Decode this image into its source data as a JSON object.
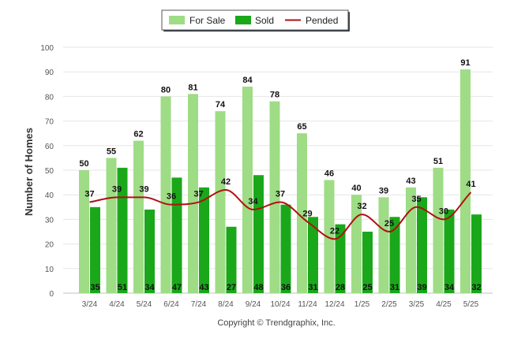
{
  "chart_data": {
    "type": "bar",
    "title": "",
    "xlabel": "",
    "ylabel": "Number of Homes",
    "ylim": [
      0,
      100
    ],
    "yticks": [
      0,
      10,
      20,
      30,
      40,
      50,
      60,
      70,
      80,
      90,
      100
    ],
    "grid": true,
    "legend_position": "top-center",
    "categories": [
      "3/24",
      "4/24",
      "5/24",
      "6/24",
      "7/24",
      "8/24",
      "9/24",
      "10/24",
      "11/24",
      "12/24",
      "1/25",
      "2/25",
      "3/25",
      "4/25",
      "5/25"
    ],
    "series": [
      {
        "name": "For Sale",
        "type": "bar",
        "color": "#9edc85",
        "values": [
          50,
          55,
          62,
          80,
          81,
          74,
          84,
          78,
          65,
          46,
          40,
          39,
          43,
          51,
          91
        ]
      },
      {
        "name": "Sold",
        "type": "bar",
        "color": "#1aa81a",
        "values": [
          35,
          51,
          34,
          47,
          43,
          27,
          48,
          36,
          31,
          28,
          25,
          31,
          39,
          34,
          32
        ]
      },
      {
        "name": "Pended",
        "type": "line",
        "color": "#b01010",
        "values": [
          37,
          39,
          39,
          36,
          37,
          42,
          34,
          37,
          29,
          22,
          32,
          25,
          35,
          30,
          41
        ]
      }
    ]
  },
  "credit": "Copyright © Trendgraphix, Inc."
}
